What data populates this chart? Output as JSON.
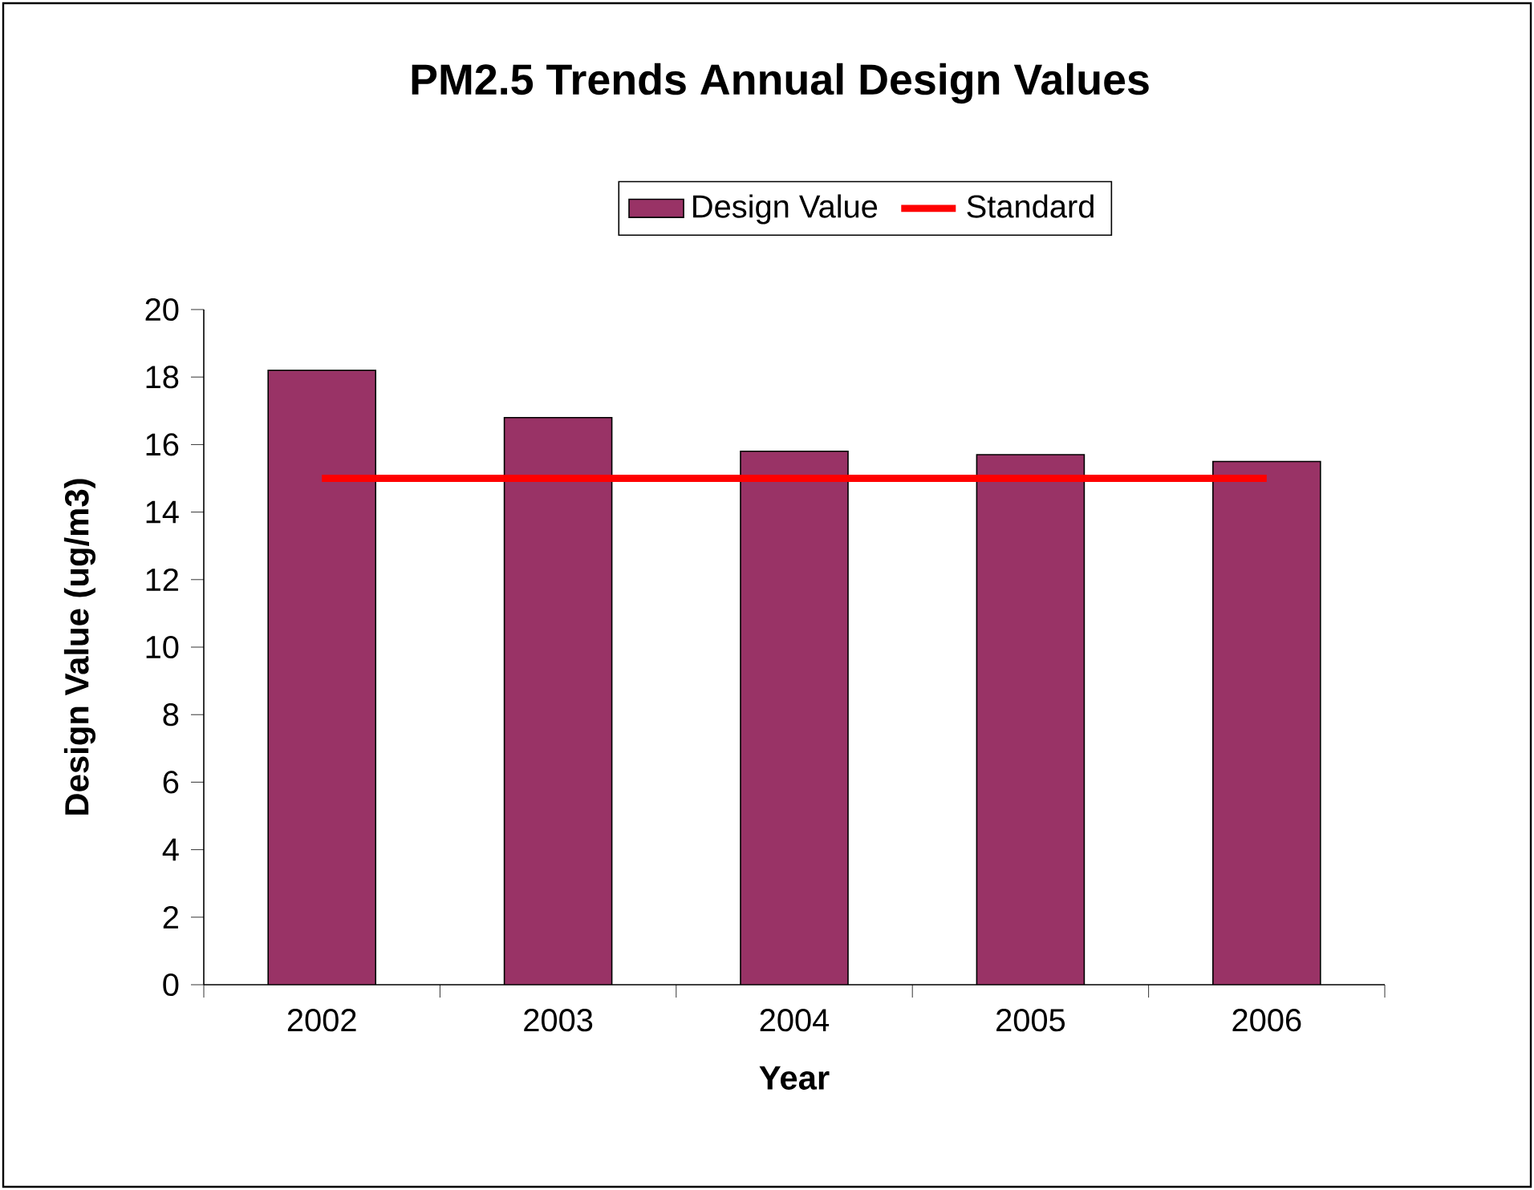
{
  "chart_data": {
    "type": "bar",
    "title": "PM2.5 Trends Annual Design Values",
    "xlabel": "Year",
    "ylabel": "Design Value (ug/m3)",
    "categories": [
      "2002",
      "2003",
      "2004",
      "2005",
      "2006"
    ],
    "series": [
      {
        "name": "Design Value",
        "color": "#993366",
        "values": [
          18.2,
          16.8,
          15.8,
          15.7,
          15.5
        ]
      },
      {
        "name": "Standard",
        "type": "line",
        "color": "#ff0000",
        "values": [
          15,
          15,
          15,
          15,
          15
        ]
      }
    ],
    "ylim": [
      0,
      20
    ],
    "yticks": [
      0,
      2,
      4,
      6,
      8,
      10,
      12,
      14,
      16,
      18,
      20
    ],
    "legend": "top"
  }
}
